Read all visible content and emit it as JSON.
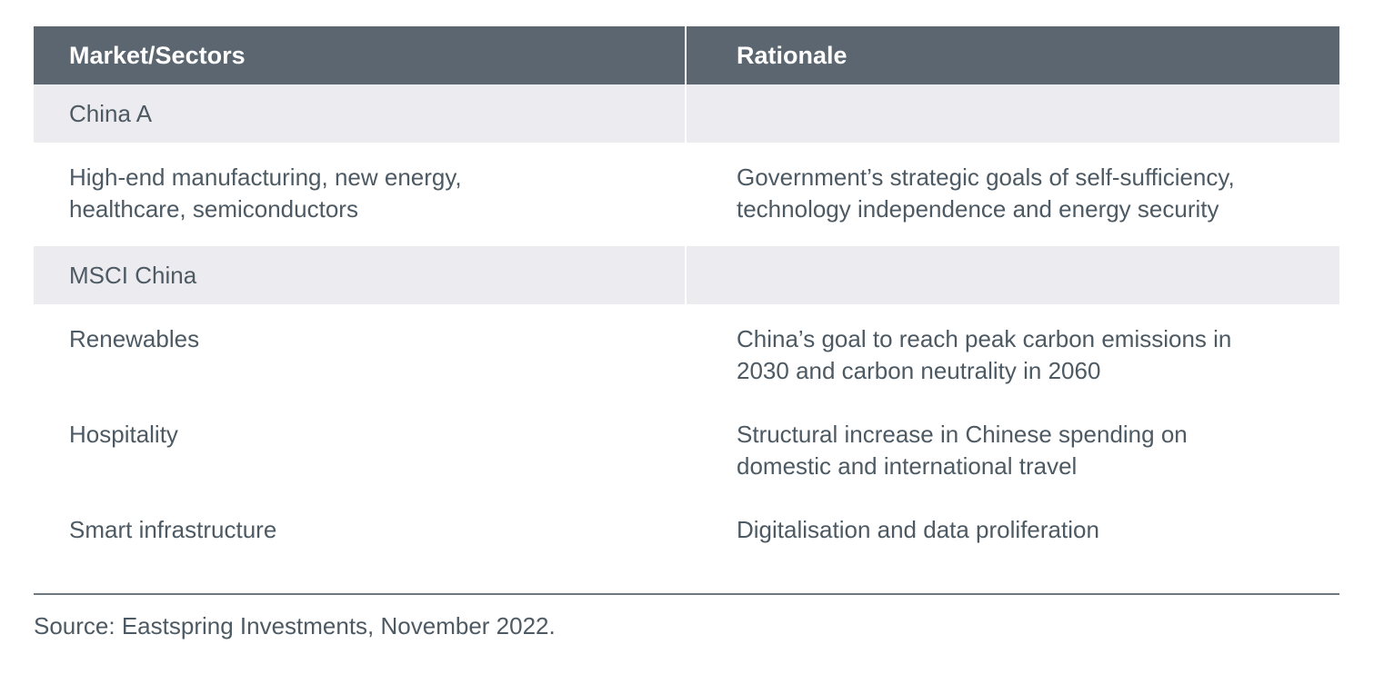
{
  "table": {
    "headers": {
      "col1": "Market/Sectors",
      "col2": "Rationale"
    },
    "rows": [
      {
        "type": "group",
        "market": "China A",
        "rationale": ""
      },
      {
        "type": "item",
        "market_lines": [
          "High-end manufacturing, new energy,",
          "healthcare, semiconductors"
        ],
        "rationale_lines": [
          "Government’s strategic goals of self-sufficiency,",
          "technology independence and energy security"
        ]
      },
      {
        "type": "group",
        "market": "MSCI China",
        "rationale": ""
      },
      {
        "type": "item",
        "market_lines": [
          "Renewables"
        ],
        "rationale_lines": [
          "China’s goal to reach peak carbon emissions in",
          "2030 and carbon neutrality in 2060"
        ]
      },
      {
        "type": "item",
        "market_lines": [
          "Hospitality"
        ],
        "rationale_lines": [
          "Structural increase in Chinese spending on",
          "domestic and international travel"
        ]
      },
      {
        "type": "item",
        "market_lines": [
          "Smart infrastructure"
        ],
        "rationale_lines": [
          "Digitalisation and data proliferation"
        ]
      }
    ]
  },
  "footer": {
    "source": "Source: Eastspring Investments, November 2022."
  },
  "colors": {
    "header_bg": "#5b6670",
    "group_bg": "#ececf0",
    "text": "#4d5a63"
  }
}
